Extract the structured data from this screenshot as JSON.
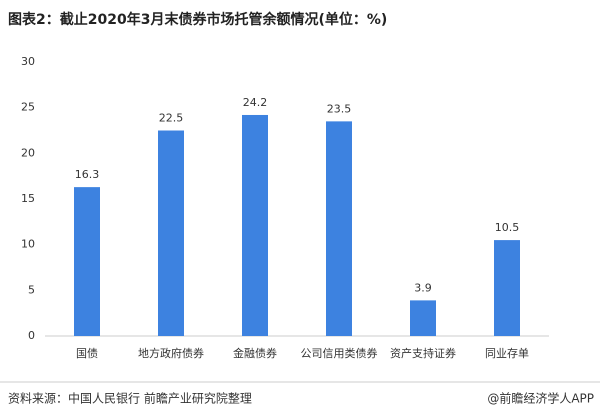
{
  "chart_data": {
    "type": "bar",
    "title": "图表2：截止2020年3月末债券市场托管余额情况(单位：%)",
    "categories": [
      "国债",
      "地方政府债券",
      "金融债券",
      "公司信用类债券",
      "资产支持证券",
      "同业存单"
    ],
    "values": [
      16.3,
      22.5,
      24.2,
      23.5,
      3.9,
      10.5
    ],
    "color": "#3d82e0",
    "ylim": [
      0,
      30
    ],
    "yticks": [
      0,
      5,
      10,
      15,
      20,
      25,
      30
    ],
    "grid": false
  },
  "footer": {
    "source": "资料来源：中国人民银行 前瞻产业研究院整理",
    "credit": "@前瞻经济学人APP"
  }
}
